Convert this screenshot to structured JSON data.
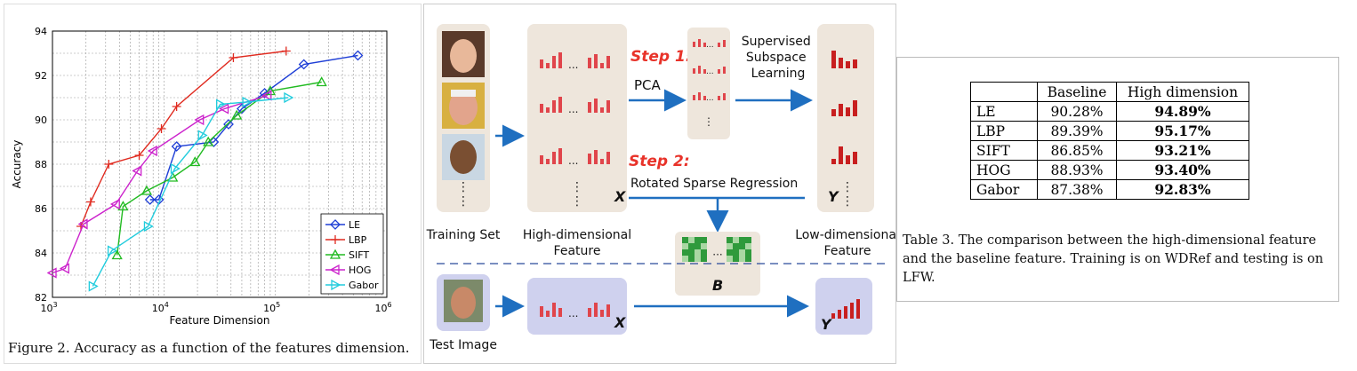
{
  "figure2": {
    "caption": "Figure 2. Accuracy as a function of the features dimension.",
    "chart_data": {
      "type": "line",
      "xlabel": "Feature Dimension",
      "ylabel": "Accuracy",
      "x_scale": "log",
      "xlim": [
        1000,
        1000000
      ],
      "ylim": [
        82,
        94
      ],
      "x_ticks": [
        "10^3",
        "10^4",
        "10^5",
        "10^6"
      ],
      "y_ticks": [
        "82",
        "84",
        "86",
        "88",
        "90",
        "92",
        "94"
      ],
      "grid": true,
      "legend_position": "bottom-right",
      "series": [
        {
          "name": "LE",
          "color": "#1f3fd6",
          "marker": "diamond",
          "x": [
            7500,
            9000,
            13000,
            28000,
            38000,
            50000,
            80000,
            180000,
            550000
          ],
          "y": [
            86.4,
            86.4,
            88.8,
            89.0,
            89.8,
            90.5,
            91.2,
            92.5,
            92.9
          ]
        },
        {
          "name": "LBP",
          "color": "#e02b20",
          "marker": "plus",
          "x": [
            1800,
            2200,
            3200,
            6000,
            9500,
            13000,
            42000,
            125000
          ],
          "y": [
            85.2,
            86.3,
            88.0,
            88.4,
            89.6,
            90.6,
            92.8,
            93.1
          ]
        },
        {
          "name": "SIFT",
          "color": "#22bb22",
          "marker": "triangle",
          "x": [
            3800,
            4300,
            7000,
            12000,
            19000,
            25000,
            45000,
            90000,
            260000
          ],
          "y": [
            83.9,
            86.1,
            86.8,
            87.4,
            88.1,
            89.0,
            90.2,
            91.3,
            91.7
          ]
        },
        {
          "name": "HOG",
          "color": "#cc22cc",
          "marker": "triangle-left",
          "x": [
            1000,
            1300,
            1900,
            3700,
            5800,
            8000,
            21000,
            35000,
            85000
          ],
          "y": [
            83.1,
            83.3,
            85.3,
            86.2,
            87.7,
            88.6,
            90.0,
            90.5,
            91.1
          ]
        },
        {
          "name": "Gabor",
          "color": "#22ccdd",
          "marker": "triangle-right",
          "x": [
            2300,
            3400,
            7200,
            12500,
            22000,
            32000,
            55000,
            130000
          ],
          "y": [
            82.5,
            84.1,
            85.2,
            87.8,
            89.3,
            90.7,
            90.8,
            91.0
          ]
        }
      ]
    }
  },
  "pipeline": {
    "training_set": "Training Set",
    "high_dim_feature": "High-dimensional Feature",
    "low_dim_feature": "Low-dimensional Feature",
    "test_image": "Test Image",
    "step1": "Step 1:",
    "pca": "PCA",
    "supervised": "Supervised Subspace Learning",
    "step2": "Step 2:",
    "rotated": "Rotated Sparse Regression",
    "sym_x": "X",
    "sym_y": "Y",
    "sym_b": "B",
    "dots": "...",
    "colors": {
      "bar": "#e0454b",
      "bar_dark": "#c81f1f",
      "column": "#eee6dc",
      "test_row": "#cfd1ee",
      "arrow": "#1f6fc0",
      "step": "#e8332a"
    }
  },
  "table3": {
    "headers": [
      "",
      "Baseline",
      "High dimension"
    ],
    "rows": [
      [
        "LE",
        "90.28%",
        "94.89%"
      ],
      [
        "LBP",
        "89.39%",
        "95.17%"
      ],
      [
        "SIFT",
        "86.85%",
        "93.21%"
      ],
      [
        "HOG",
        "88.93%",
        "93.40%"
      ],
      [
        "Gabor",
        "87.38%",
        "92.83%"
      ]
    ],
    "caption": "Table 3. The comparison between the high-dimensional feature and the baseline feature. Training is on WDRef and testing is on LFW."
  }
}
